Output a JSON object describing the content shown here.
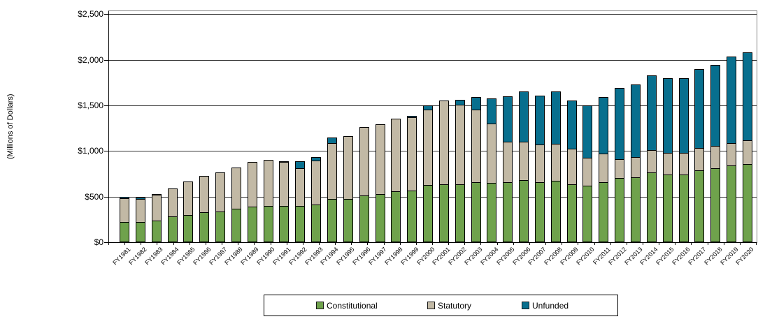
{
  "chart_data": {
    "type": "bar",
    "stacked": true,
    "title": "",
    "ylabel": "(Millions of Dollars)",
    "xlabel": "",
    "ylim": [
      0,
      2500
    ],
    "y_tick_step": 500,
    "y_tick_labels": [
      "$0",
      "$500",
      "$1,000",
      "$1,500",
      "$2,000",
      "$2,500"
    ],
    "grid": true,
    "legend_position": "bottom",
    "categories": [
      "FY1981",
      "FY1982",
      "FY1983",
      "FY1984",
      "FY1985",
      "FY1986",
      "FY1987",
      "FY1988",
      "FY1989",
      "FY1990",
      "FY1991",
      "FY1992",
      "FY1993",
      "FY1994",
      "FY1995",
      "FY1996",
      "FY1997",
      "FY1998",
      "FY1999",
      "FY2000",
      "FY2001",
      "FY2002",
      "FY2003",
      "FY2004",
      "FY2005",
      "FY2006",
      "FY2007",
      "FY2008",
      "FY2009",
      "FY2010",
      "FY2011",
      "FY2012",
      "FY2013",
      "FY2014",
      "FY2015",
      "FY2016",
      "FY2017",
      "FY2018",
      "FY2019",
      "FY2020"
    ],
    "series": [
      {
        "name": "Constitutional",
        "color": "#6FA24C",
        "values": [
          225,
          225,
          235,
          285,
          300,
          330,
          335,
          365,
          390,
          400,
          395,
          400,
          415,
          475,
          475,
          515,
          530,
          555,
          570,
          630,
          635,
          635,
          655,
          650,
          660,
          685,
          655,
          670,
          635,
          620,
          655,
          705,
          715,
          765,
          745,
          745,
          790,
          810,
          845,
          860
        ]
      },
      {
        "name": "Statutory",
        "color": "#C2B9A5",
        "values": [
          270,
          260,
          290,
          315,
          375,
          405,
          435,
          460,
          495,
          510,
          490,
          420,
          490,
          620,
          700,
          755,
          770,
          800,
          810,
          835,
          930,
          880,
          800,
          655,
          455,
          430,
          420,
          410,
          400,
          315,
          325,
          215,
          230,
          255,
          245,
          245,
          255,
          250,
          255,
          265
        ]
      },
      {
        "name": "Unfunded",
        "color": "#086F8E",
        "values": [
          25,
          20,
          15,
          0,
          0,
          0,
          0,
          0,
          0,
          0,
          15,
          85,
          45,
          70,
          0,
          0,
          0,
          0,
          25,
          50,
          0,
          60,
          145,
          280,
          505,
          555,
          540,
          580,
          535,
          585,
          630,
          790,
          805,
          830,
          825,
          825,
          875,
          895,
          960,
          970
        ]
      }
    ],
    "colors": {
      "bar_border": "#000000",
      "gridline": "#333333",
      "plot_border": "#858585",
      "axis": "#000000",
      "text": "#000000"
    }
  }
}
